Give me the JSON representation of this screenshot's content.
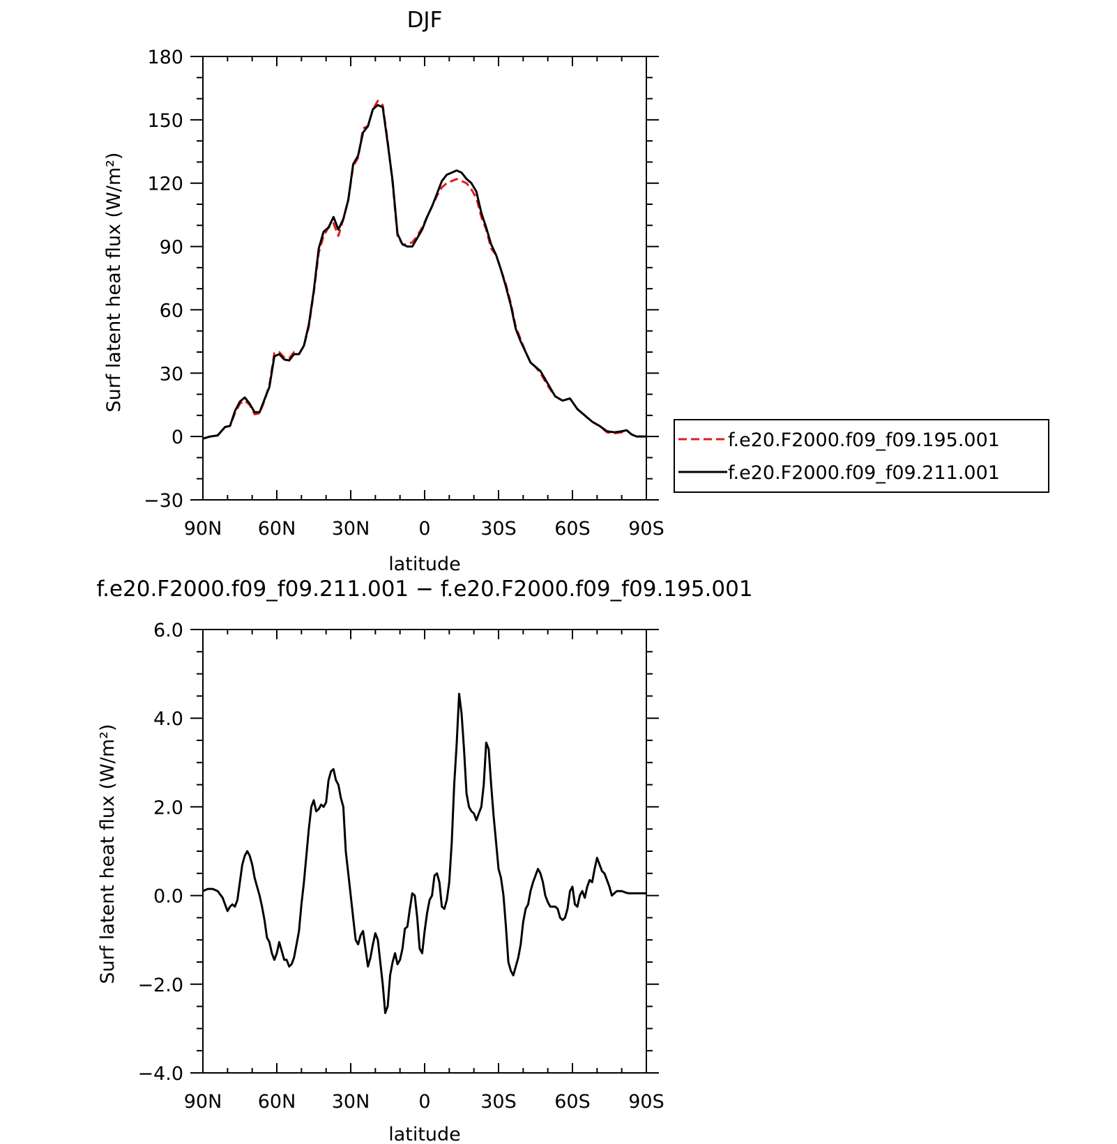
{
  "chart_data": [
    {
      "type": "line",
      "title": "DJF",
      "xlabel": "latitude",
      "ylabel": "Surf latent heat flux (W/m²)",
      "xlim": [
        90,
        -90
      ],
      "ylim": [
        -30,
        180
      ],
      "yticks": [
        -30,
        0,
        30,
        60,
        90,
        120,
        150,
        180
      ],
      "ytick_labels": [
        "−30",
        "0",
        "30",
        "60",
        "90",
        "120",
        "150",
        "180"
      ],
      "xticks": [
        90,
        60,
        30,
        0,
        -30,
        -60,
        -90
      ],
      "xtick_labels": [
        "90N",
        "60N",
        "30N",
        "0",
        "30S",
        "60S",
        "90S"
      ],
      "legend_position": "right",
      "series": [
        {
          "name": "f.e20.F2000.f09_f09.195.001",
          "color": "#e41a1c",
          "dash": "dashed",
          "x": [
            90,
            87,
            84,
            81,
            79,
            77,
            75,
            73,
            71,
            69,
            67,
            65,
            63,
            61,
            59,
            57,
            55,
            53,
            51,
            49,
            47,
            45,
            43,
            41,
            39,
            37,
            35,
            33,
            31,
            29,
            27,
            25,
            23,
            21,
            19,
            17,
            15,
            13,
            11,
            9,
            7,
            5,
            3,
            1,
            -1,
            -3,
            -5,
            -7,
            -9,
            -11,
            -13,
            -15,
            -17,
            -19,
            -21,
            -23,
            -25,
            -27,
            -29,
            -31,
            -33,
            -35,
            -37,
            -39,
            -41,
            -43,
            -45,
            -47,
            -50,
            -53,
            -56,
            -59,
            -62,
            -65,
            -68,
            -71,
            -74,
            -77,
            -80,
            -82,
            -84,
            -86,
            -88,
            -90
          ],
          "y": [
            -1,
            0,
            0.5,
            4.5,
            5,
            11,
            15.5,
            17,
            15,
            10.5,
            11,
            17,
            24.5,
            39.5,
            40,
            37.5,
            37,
            40,
            39,
            43,
            52,
            68,
            87,
            95,
            99,
            101,
            95,
            103,
            112,
            128,
            132,
            146,
            147,
            155,
            159,
            157,
            140,
            120,
            95,
            91,
            91,
            92,
            95,
            99,
            104,
            109,
            114,
            118,
            120,
            121,
            122,
            121,
            120,
            117,
            113,
            104,
            98,
            89,
            86,
            79,
            72,
            63,
            52,
            46,
            40,
            35,
            33,
            30,
            24,
            19,
            17,
            18,
            13,
            10,
            7,
            5,
            2,
            1.5,
            2,
            3,
            1,
            0,
            0,
            0
          ]
        },
        {
          "name": "f.e20.F2000.f09_f09.211.001",
          "color": "#000000",
          "dash": "solid",
          "x": [
            90,
            87,
            84,
            81,
            79,
            77,
            75,
            73,
            71,
            69,
            67,
            65,
            63,
            61,
            59,
            57,
            55,
            53,
            51,
            49,
            47,
            45,
            43,
            41,
            39,
            37,
            35,
            33,
            31,
            29,
            27,
            25,
            23,
            21,
            19,
            17,
            15,
            13,
            11,
            9,
            7,
            5,
            3,
            1,
            -1,
            -3,
            -5,
            -7,
            -9,
            -11,
            -13,
            -15,
            -17,
            -19,
            -21,
            -23,
            -25,
            -27,
            -29,
            -31,
            -33,
            -35,
            -37,
            -39,
            -41,
            -43,
            -45,
            -47,
            -50,
            -53,
            -56,
            -59,
            -62,
            -65,
            -68,
            -71,
            -74,
            -77,
            -80,
            -82,
            -84,
            -86,
            -88,
            -90
          ],
          "y": [
            -1,
            0,
            0.5,
            4.5,
            5,
            12,
            16.5,
            18.5,
            15.5,
            11.5,
            11.5,
            17.5,
            23.5,
            38,
            39,
            36.5,
            36,
            39,
            39,
            43,
            53,
            69,
            89,
            97,
            99,
            104,
            98,
            103,
            112,
            129,
            133,
            144,
            147,
            155,
            157,
            156,
            139,
            121,
            96,
            91,
            90,
            90,
            94,
            98,
            104,
            109,
            115,
            121,
            124,
            125,
            126,
            125,
            122,
            120,
            116,
            106,
            99,
            91,
            86,
            79,
            71,
            62,
            51,
            45,
            40,
            35,
            33,
            31,
            25,
            19,
            17,
            18,
            13,
            10,
            7,
            5,
            2.5,
            2,
            2.5,
            3,
            1,
            0,
            0,
            0
          ]
        }
      ]
    },
    {
      "type": "line",
      "title": "f.e20.F2000.f09_f09.211.001 − f.e20.F2000.f09_f09.195.001",
      "xlabel": "latitude",
      "ylabel": "Surf latent heat flux (W/m²)",
      "xlim": [
        90,
        -90
      ],
      "ylim": [
        -4,
        6
      ],
      "yticks": [
        -4,
        -2,
        0,
        2,
        4,
        6
      ],
      "ytick_labels": [
        "−4.0",
        "−2.0",
        "0.0",
        "2.0",
        "4.0",
        "6.0"
      ],
      "xticks": [
        90,
        60,
        30,
        0,
        -30,
        -60,
        -90
      ],
      "xtick_labels": [
        "90N",
        "60N",
        "30N",
        "0",
        "30S",
        "60S",
        "90S"
      ],
      "series": [
        {
          "color": "#000000",
          "dash": "solid",
          "x": [
            90,
            88,
            86,
            84,
            82,
            80,
            79,
            78,
            77,
            76,
            75,
            74,
            73,
            72,
            71,
            70,
            69,
            68,
            67,
            66,
            65,
            64,
            63,
            62,
            61,
            60,
            59,
            58,
            57,
            56,
            55,
            54,
            53,
            52,
            51,
            50,
            49,
            48,
            47,
            46,
            45,
            44,
            43,
            42,
            41,
            40,
            39,
            38,
            37,
            36,
            35,
            34,
            33,
            32,
            31,
            30,
            29,
            28,
            27,
            26,
            25,
            24,
            23,
            22,
            21,
            20,
            19,
            18,
            17,
            16,
            15,
            14,
            13,
            12,
            11,
            10,
            9,
            8,
            7,
            6,
            5,
            4,
            3,
            2,
            1,
            0,
            -1,
            -2,
            -3,
            -4,
            -5,
            -6,
            -7,
            -8,
            -9,
            -10,
            -11,
            -12,
            -13,
            -14,
            -15,
            -16,
            -17,
            -18,
            -19,
            -20,
            -21,
            -22,
            -23,
            -24,
            -25,
            -26,
            -27,
            -28,
            -29,
            -30,
            -31,
            -32,
            -33,
            -34,
            -35,
            -36,
            -37,
            -38,
            -39,
            -40,
            -41,
            -42,
            -43,
            -44,
            -45,
            -46,
            -47,
            -48,
            -49,
            -50,
            -51,
            -52,
            -53,
            -54,
            -55,
            -56,
            -57,
            -58,
            -59,
            -60,
            -61,
            -62,
            -63,
            -64,
            -65,
            -66,
            -67,
            -68,
            -69,
            -70,
            -71,
            -72,
            -73,
            -74,
            -75,
            -76,
            -77,
            -78,
            -79,
            -80,
            -81,
            -82,
            -83,
            -84,
            -85,
            -86,
            -87,
            -88,
            -89,
            -90
          ],
          "y": [
            0.1,
            0.15,
            0.15,
            0.1,
            -0.05,
            -0.35,
            -0.25,
            -0.2,
            -0.25,
            -0.1,
            0.3,
            0.7,
            0.9,
            1.0,
            0.9,
            0.7,
            0.4,
            0.2,
            0.0,
            -0.25,
            -0.55,
            -0.95,
            -1.05,
            -1.3,
            -1.45,
            -1.3,
            -1.05,
            -1.25,
            -1.45,
            -1.45,
            -1.6,
            -1.55,
            -1.4,
            -1.1,
            -0.8,
            -0.2,
            0.3,
            0.9,
            1.5,
            2.0,
            2.15,
            1.9,
            1.95,
            2.05,
            2.0,
            2.1,
            2.6,
            2.8,
            2.85,
            2.6,
            2.5,
            2.2,
            2.0,
            1.0,
            0.5,
            0.0,
            -0.5,
            -1.0,
            -1.1,
            -0.9,
            -0.8,
            -1.2,
            -1.6,
            -1.4,
            -1.1,
            -0.85,
            -1.0,
            -1.5,
            -2.0,
            -2.65,
            -2.5,
            -1.8,
            -1.5,
            -1.3,
            -1.55,
            -1.45,
            -1.2,
            -0.75,
            -0.7,
            -0.3,
            0.05,
            0.0,
            -0.5,
            -1.2,
            -1.3,
            -0.8,
            -0.4,
            -0.1,
            0.0,
            0.45,
            0.5,
            0.3,
            -0.25,
            -0.3,
            -0.1,
            0.3,
            1.2,
            2.5,
            3.4,
            4.55,
            4.1,
            3.3,
            2.3,
            2.0,
            1.9,
            1.85,
            1.7,
            1.85,
            2.0,
            2.5,
            3.45,
            3.3,
            2.5,
            1.8,
            1.2,
            0.6,
            0.4,
            0.0,
            -0.7,
            -1.5,
            -1.7,
            -1.8,
            -1.6,
            -1.4,
            -1.1,
            -0.6,
            -0.3,
            -0.2,
            0.1,
            0.3,
            0.45,
            0.6,
            0.5,
            0.3,
            0.0,
            -0.15,
            -0.25,
            -0.25,
            -0.25,
            -0.3,
            -0.5,
            -0.55,
            -0.5,
            -0.3,
            0.1,
            0.2,
            -0.2,
            -0.25,
            0.0,
            0.1,
            -0.05,
            0.2,
            0.35,
            0.3,
            0.6,
            0.85,
            0.7,
            0.55,
            0.5,
            0.35,
            0.2,
            0.0,
            0.05,
            0.1,
            0.1,
            0.1,
            0.08,
            0.06,
            0.05,
            0.05,
            0.05,
            0.05,
            0.05,
            0.05,
            0.05,
            0.05
          ]
        }
      ]
    }
  ]
}
